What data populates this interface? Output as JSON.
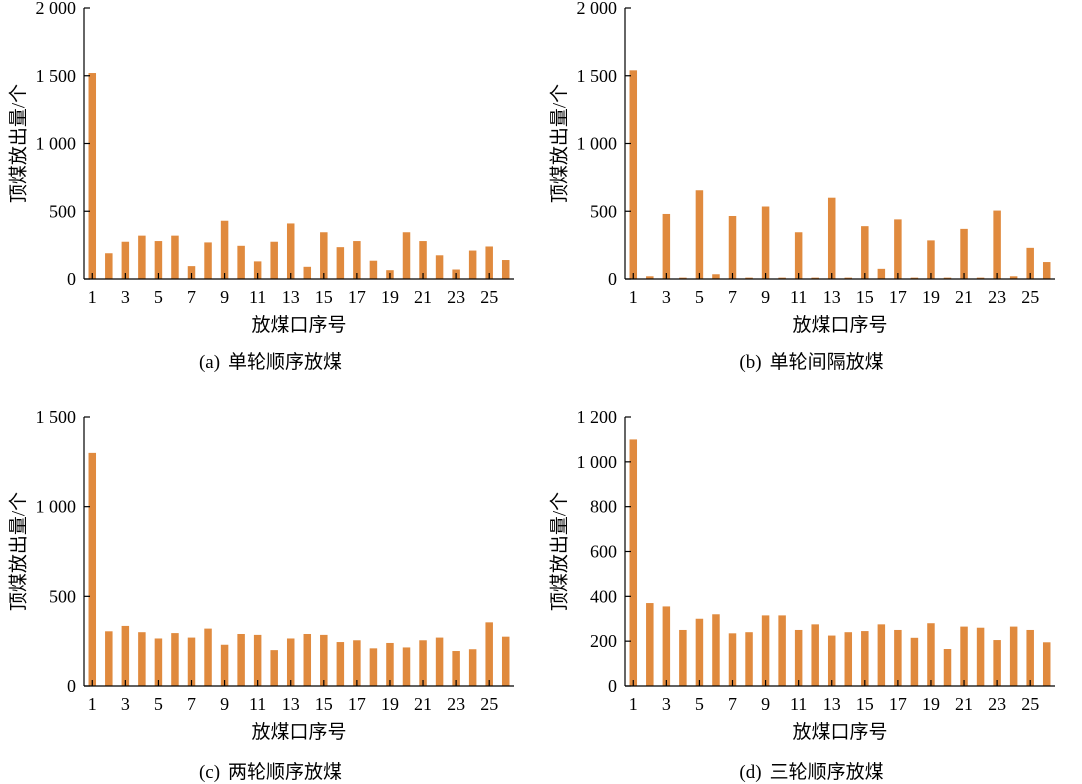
{
  "chart_data": [
    {
      "type": "bar",
      "panel_label": "(a)",
      "caption": "单轮顺序放煤",
      "xlabel": "放煤口序号",
      "ylabel": "顶煤放出量/个",
      "ylim": [
        0,
        2000
      ],
      "yticks": [
        0,
        500,
        1000,
        1500,
        2000
      ],
      "ytick_labels": [
        "0",
        "500",
        "1 000",
        "1 500",
        "2 000"
      ],
      "categories": [
        1,
        2,
        3,
        4,
        5,
        6,
        7,
        8,
        9,
        10,
        11,
        12,
        13,
        14,
        15,
        16,
        17,
        18,
        19,
        20,
        21,
        22,
        23,
        24,
        25,
        26
      ],
      "xtick_labels": [
        "1",
        "3",
        "5",
        "7",
        "9",
        "11",
        "13",
        "15",
        "17",
        "19",
        "21",
        "23",
        "25"
      ],
      "values": [
        1520,
        190,
        275,
        320,
        280,
        320,
        95,
        270,
        430,
        245,
        130,
        275,
        410,
        90,
        345,
        235,
        280,
        135,
        65,
        345,
        280,
        175,
        70,
        210,
        240,
        140
      ],
      "color": "#E08A3E"
    },
    {
      "type": "bar",
      "panel_label": "(b)",
      "caption": "单轮间隔放煤",
      "xlabel": "放煤口序号",
      "ylabel": "顶煤放出量/个",
      "ylim": [
        0,
        2000
      ],
      "yticks": [
        0,
        500,
        1000,
        1500,
        2000
      ],
      "ytick_labels": [
        "0",
        "500",
        "1 000",
        "1 500",
        "2 000"
      ],
      "categories": [
        1,
        2,
        3,
        4,
        5,
        6,
        7,
        8,
        9,
        10,
        11,
        12,
        13,
        14,
        15,
        16,
        17,
        18,
        19,
        20,
        21,
        22,
        23,
        24,
        25,
        26
      ],
      "xtick_labels": [
        "1",
        "3",
        "5",
        "7",
        "9",
        "11",
        "13",
        "15",
        "17",
        "19",
        "21",
        "23",
        "25"
      ],
      "values": [
        1540,
        20,
        480,
        10,
        655,
        35,
        465,
        10,
        535,
        10,
        345,
        10,
        600,
        10,
        390,
        75,
        440,
        10,
        285,
        10,
        370,
        10,
        505,
        20,
        230,
        125
      ],
      "color": "#E08A3E"
    },
    {
      "type": "bar",
      "panel_label": "(c)",
      "caption": "两轮顺序放煤",
      "xlabel": "放煤口序号",
      "ylabel": "顶煤放出量/个",
      "ylim": [
        0,
        1500
      ],
      "yticks": [
        0,
        500,
        1000,
        1500
      ],
      "ytick_labels": [
        "0",
        "500",
        "1 000",
        "1 500"
      ],
      "categories": [
        1,
        2,
        3,
        4,
        5,
        6,
        7,
        8,
        9,
        10,
        11,
        12,
        13,
        14,
        15,
        16,
        17,
        18,
        19,
        20,
        21,
        22,
        23,
        24,
        25,
        26
      ],
      "xtick_labels": [
        "1",
        "3",
        "5",
        "7",
        "9",
        "11",
        "13",
        "15",
        "17",
        "19",
        "21",
        "23",
        "25"
      ],
      "values": [
        1300,
        305,
        335,
        300,
        265,
        295,
        270,
        320,
        230,
        290,
        285,
        200,
        265,
        290,
        285,
        245,
        255,
        210,
        240,
        215,
        255,
        270,
        195,
        205,
        355,
        275
      ],
      "color": "#E08A3E"
    },
    {
      "type": "bar",
      "panel_label": "(d)",
      "caption": "三轮顺序放煤",
      "xlabel": "放煤口序号",
      "ylabel": "顶煤放出量/个",
      "ylim": [
        0,
        1200
      ],
      "yticks": [
        0,
        200,
        400,
        600,
        800,
        1000,
        1200
      ],
      "ytick_labels": [
        "0",
        "200",
        "400",
        "600",
        "800",
        "1 000",
        "1 200"
      ],
      "categories": [
        1,
        2,
        3,
        4,
        5,
        6,
        7,
        8,
        9,
        10,
        11,
        12,
        13,
        14,
        15,
        16,
        17,
        18,
        19,
        20,
        21,
        22,
        23,
        24,
        25,
        26
      ],
      "xtick_labels": [
        "1",
        "3",
        "5",
        "7",
        "9",
        "11",
        "13",
        "15",
        "17",
        "19",
        "21",
        "23",
        "25"
      ],
      "values": [
        1100,
        370,
        355,
        250,
        300,
        320,
        235,
        240,
        315,
        315,
        250,
        275,
        225,
        240,
        245,
        275,
        250,
        215,
        280,
        165,
        265,
        260,
        205,
        265,
        250,
        195
      ],
      "color": "#E08A3E"
    }
  ]
}
